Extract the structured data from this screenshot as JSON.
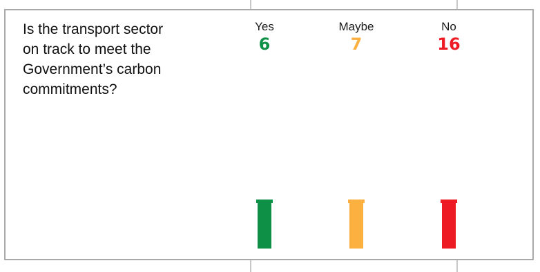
{
  "question": "Is the transport sector on track to meet the Government’s carbon commitments?",
  "chart_data": {
    "type": "bar",
    "categories": [
      "Yes",
      "Maybe",
      "No"
    ],
    "values": [
      6,
      7,
      16
    ],
    "colors": [
      "#0e9146",
      "#fbb040",
      "#ed1c24"
    ]
  }
}
